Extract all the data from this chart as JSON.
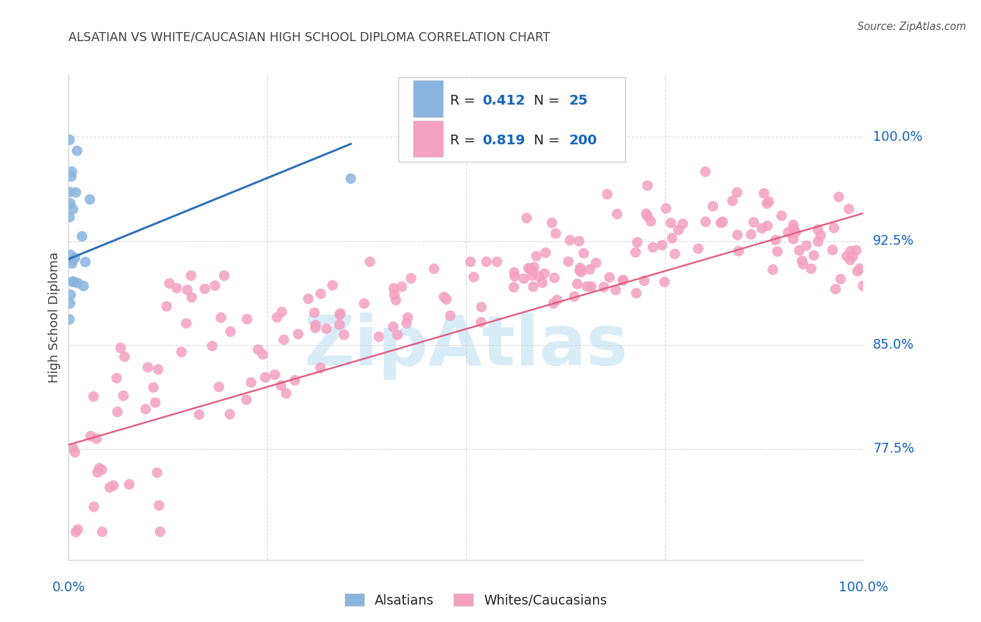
{
  "title": "ALSATIAN VS WHITE/CAUCASIAN HIGH SCHOOL DIPLOMA CORRELATION CHART",
  "source": "Source: ZipAtlas.com",
  "ylabel": "High School Diploma",
  "ytick_labels": [
    "100.0%",
    "92.5%",
    "85.0%",
    "77.5%"
  ],
  "ytick_values": [
    1.0,
    0.925,
    0.85,
    0.775
  ],
  "legend_labels": [
    "Alsatians",
    "Whites/Caucasians"
  ],
  "alsatian_R": "0.412",
  "alsatian_N": "25",
  "white_R": "0.819",
  "white_N": "200",
  "blue_dot_color": "#8ab4e0",
  "pink_dot_color": "#f4a0c0",
  "blue_line_color": "#3070b8",
  "pink_line_color": "#e06080",
  "background_color": "#ffffff",
  "grid_color": "#d8d8d8",
  "title_color": "#404040",
  "label_color": "#1565c0",
  "source_color": "#555555",
  "watermark_color": "#d8ecf8",
  "legend_box_color": "#f5f5f5",
  "legend_edge_color": "#cccccc",
  "xlim": [
    0.0,
    1.0
  ],
  "ylim": [
    0.695,
    1.045
  ],
  "als_line_x": [
    0.0,
    0.355
  ],
  "als_line_y": [
    0.912,
    0.995
  ],
  "white_line_x": [
    0.0,
    1.0
  ],
  "white_line_y": [
    0.778,
    0.945
  ]
}
